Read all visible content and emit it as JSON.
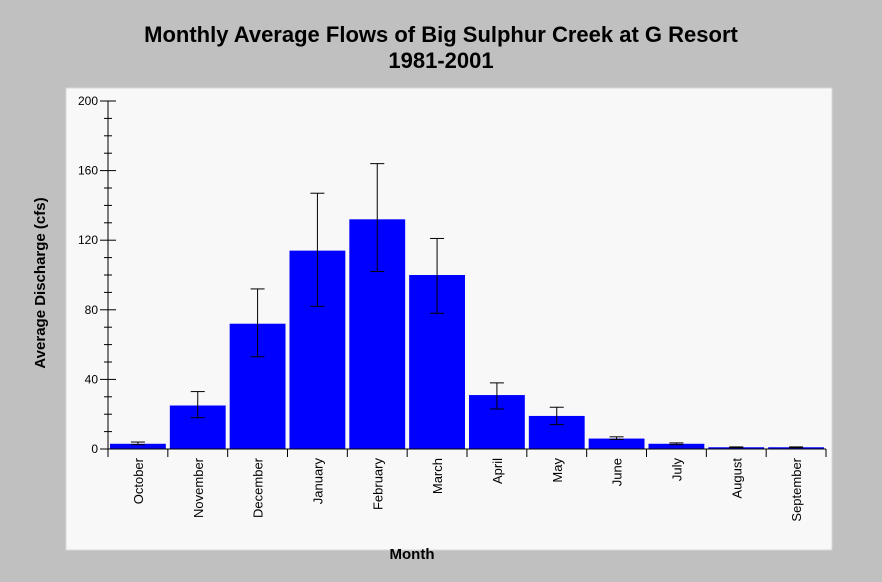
{
  "chart_data": {
    "type": "bar",
    "title": "Monthly Average Flows of Big Sulphur Creek at G Resort",
    "subtitle": "1981-2001",
    "xlabel": "Month",
    "ylabel": "Average Discharge (cfs)",
    "ylim": [
      0,
      200
    ],
    "yticks": [
      "0",
      "40",
      "80",
      "120",
      "160",
      "200"
    ],
    "categories": [
      "October",
      "November",
      "December",
      "January",
      "February",
      "March",
      "April",
      "May",
      "June",
      "July",
      "August",
      "September"
    ],
    "values": [
      3,
      25,
      72,
      114,
      132,
      100,
      31,
      19,
      6,
      3,
      1,
      1
    ],
    "error_low": [
      2.5,
      18,
      53,
      82,
      102,
      78,
      23,
      14,
      5.5,
      2.5,
      0.8,
      0.8
    ],
    "error_high": [
      4,
      33,
      92,
      147,
      164,
      121,
      38,
      24,
      7,
      3.5,
      1.2,
      1.2
    ],
    "grid": false,
    "legend": "none",
    "bar_color": "#0000ff",
    "plot_background": "#f8f8f8"
  }
}
